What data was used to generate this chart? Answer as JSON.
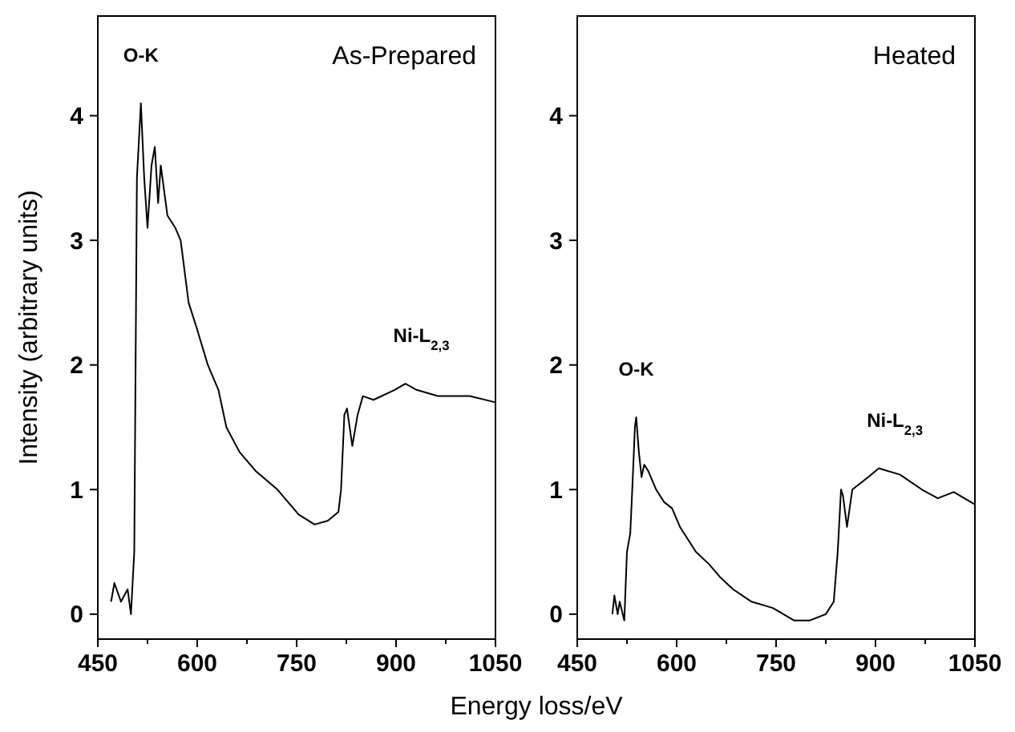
{
  "chart_data": [
    {
      "type": "line",
      "title": "As-Prepared",
      "xlabel": "Energy loss/eV",
      "ylabel": "Intensity (arbitrary units)",
      "xlim": [
        450,
        1050
      ],
      "ylim": [
        -0.2,
        4.8
      ],
      "xticks": [
        450,
        {
          "value": 525,
          "label": null
        },
        600,
        {
          "value": 675,
          "label": null
        },
        750,
        {
          "value": 825,
          "label": null
        },
        900,
        {
          "value": 975,
          "label": null
        },
        1050
      ],
      "yticks": [
        0,
        1,
        2,
        3,
        4
      ],
      "annotations": [
        "O-K",
        "Ni-L$_{2,3}$"
      ],
      "series": [
        {
          "color": "#000000",
          "x": [
            470,
            475,
            485,
            495,
            500,
            505,
            509,
            515,
            520,
            525,
            531,
            536,
            541,
            545,
            555,
            567,
            575,
            587,
            599,
            616,
            632,
            644,
            664,
            688,
            721,
            737,
            753,
            777,
            797,
            813,
            817,
            822,
            826,
            834,
            842,
            850,
            866,
            898,
            914,
            931,
            963,
            1011,
            1050
          ],
          "values": [
            0.1,
            0.25,
            0.1,
            0.2,
            0.0,
            0.5,
            3.5,
            4.1,
            3.5,
            3.1,
            3.6,
            3.75,
            3.3,
            3.6,
            3.2,
            3.1,
            3.0,
            2.5,
            2.3,
            2.0,
            1.8,
            1.5,
            1.3,
            1.15,
            1.0,
            0.9,
            0.8,
            0.72,
            0.75,
            0.82,
            1.0,
            1.6,
            1.65,
            1.35,
            1.6,
            1.75,
            1.72,
            1.8,
            1.85,
            1.8,
            1.75,
            1.75,
            1.7
          ]
        }
      ]
    },
    {
      "type": "line",
      "title": "Heated",
      "xlim": [
        450,
        1050
      ],
      "ylim": [
        -0.2,
        4.8
      ],
      "xticks": [
        450,
        {
          "value": 525,
          "label": null
        },
        600,
        {
          "value": 675,
          "label": null
        },
        750,
        {
          "value": 825,
          "label": null
        },
        900,
        {
          "value": 975,
          "label": null
        },
        1050
      ],
      "yticks": [
        0,
        1,
        2,
        3,
        4
      ],
      "annotations": [
        "O-K",
        "Ni-L$_{2,3}$"
      ],
      "series": [
        {
          "color": "#000000",
          "x": [
            503,
            506,
            511,
            514,
            521,
            525,
            530,
            533,
            537,
            539,
            543,
            547,
            551,
            557,
            569,
            581,
            593,
            605,
            617,
            629,
            649,
            665,
            685,
            713,
            745,
            777,
            801,
            825,
            837,
            843,
            848,
            851,
            857,
            865,
            889,
            905,
            937,
            970,
            994,
            1018,
            1050
          ],
          "values": [
            0.0,
            0.15,
            0.0,
            0.1,
            -0.05,
            0.5,
            0.65,
            1.0,
            1.5,
            1.58,
            1.3,
            1.1,
            1.2,
            1.15,
            1.0,
            0.9,
            0.85,
            0.7,
            0.6,
            0.5,
            0.4,
            0.3,
            0.2,
            0.1,
            0.05,
            -0.05,
            -0.05,
            0.0,
            0.1,
            0.5,
            1.0,
            0.95,
            0.7,
            1.0,
            1.1,
            1.17,
            1.12,
            1.0,
            0.93,
            0.98,
            0.88
          ]
        }
      ]
    }
  ]
}
